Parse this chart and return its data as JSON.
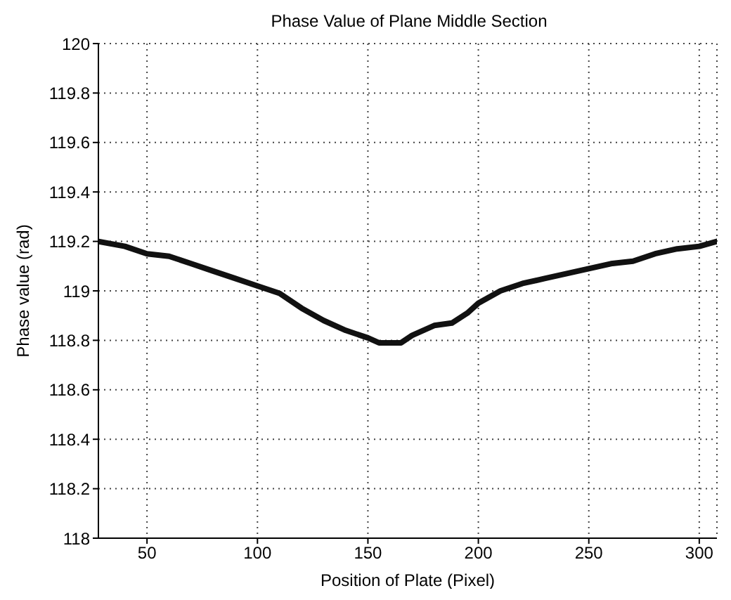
{
  "chart_data": {
    "type": "line",
    "title": "Phase Value of Plane Middle Section",
    "xlabel": "Position of Plate (Pixel)",
    "ylabel": "Phase value (rad)",
    "x": [
      28,
      40,
      50,
      60,
      70,
      80,
      90,
      100,
      110,
      120,
      130,
      140,
      150,
      155,
      165,
      170,
      180,
      188,
      195,
      200,
      210,
      220,
      230,
      240,
      250,
      260,
      270,
      280,
      290,
      300,
      308
    ],
    "series": [
      {
        "color": "#111111",
        "values": [
          119.2,
          119.18,
          119.15,
          119.14,
          119.11,
          119.08,
          119.05,
          119.02,
          118.99,
          118.93,
          118.88,
          118.84,
          118.81,
          118.79,
          118.79,
          118.82,
          118.86,
          118.87,
          118.91,
          118.95,
          119.0,
          119.03,
          119.05,
          119.07,
          119.09,
          119.11,
          119.12,
          119.15,
          119.17,
          119.18,
          119.2
        ]
      }
    ],
    "xlim": [
      28,
      308
    ],
    "xticks": [
      50,
      100,
      150,
      200,
      250,
      300
    ],
    "ylim": [
      118,
      120
    ],
    "yticks": [
      118,
      118.2,
      118.4,
      118.6,
      118.8,
      119,
      119.2,
      119.4,
      119.6,
      119.8,
      120
    ],
    "grid": true,
    "legend": false
  }
}
